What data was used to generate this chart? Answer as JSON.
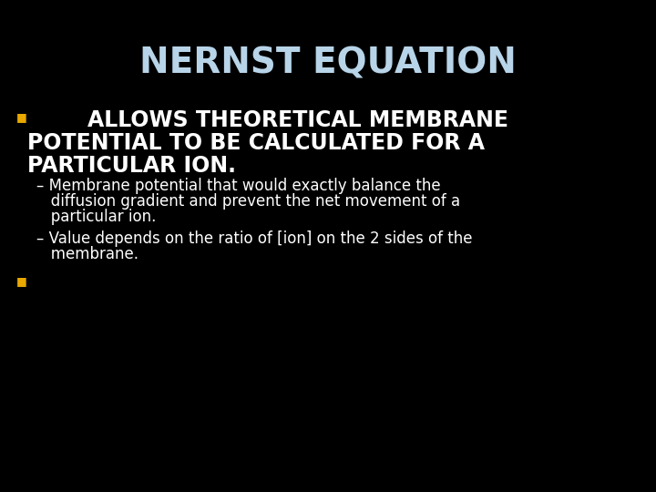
{
  "background_color": "#000000",
  "title": "NERNST EQUATION",
  "title_color": "#b8d4e8",
  "title_fontsize": 28,
  "title_fontweight": "bold",
  "bullet_color": "#e8a800",
  "bullet1_line1": "        ALLOWS THEORETICAL MEMBRANE",
  "bullet1_line2": "POTENTIAL TO BE CALCULATED FOR A",
  "bullet1_line3": "PARTICULAR ION.",
  "bullet1_color": "#ffffff",
  "bullet1_fontsize": 17,
  "sub_color": "#ffffff",
  "sub_fontsize": 12,
  "sub1_line1": "– Membrane potential that would exactly balance the",
  "sub1_line2": "   diffusion gradient and prevent the net movement of a",
  "sub1_line3": "   particular ion.",
  "sub2_line1": "– Value depends on the ratio of [ion] on the 2 sides of the",
  "sub2_line2": "   membrane.",
  "bullet_marker_size": 9
}
